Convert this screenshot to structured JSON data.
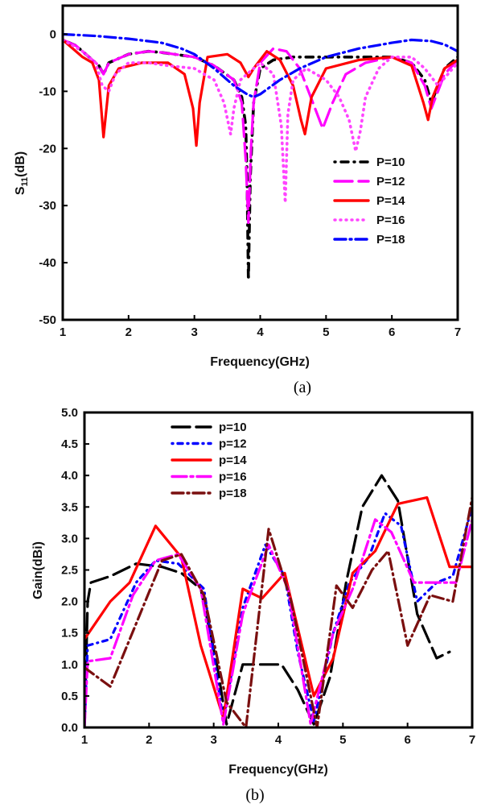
{
  "chart_data": [
    {
      "type": "line",
      "panel_label": "(a)",
      "title": "",
      "xlabel": "Frequency(GHz)",
      "ylabel_main": "S",
      "ylabel_sub": "11",
      "ylabel_unit": "(dB)",
      "xlim": [
        1,
        7
      ],
      "ylim": [
        -50,
        5
      ],
      "xticks": [
        1,
        2,
        3,
        4,
        5,
        6,
        7
      ],
      "yticks": [
        0,
        -10,
        -20,
        -30,
        -40,
        -50
      ],
      "grid": false,
      "legend_position": "right",
      "series": [
        {
          "name": "P=10",
          "color": "#000000",
          "dash": "dot-dash-heavy",
          "x": [
            1,
            1.2,
            1.4,
            1.55,
            1.62,
            1.7,
            2,
            2.3,
            2.5,
            3,
            3.3,
            3.6,
            3.72,
            3.78,
            3.8,
            3.82,
            3.85,
            3.9,
            4,
            4.2,
            4.5,
            5,
            5.5,
            6,
            6.3,
            6.5,
            6.6,
            6.8,
            7
          ],
          "y": [
            -1,
            -2,
            -4,
            -5.5,
            -7,
            -5,
            -3.5,
            -3,
            -3.2,
            -4,
            -5.5,
            -8,
            -11,
            -16,
            -25,
            -43,
            -25,
            -12,
            -6,
            -4.5,
            -4,
            -4,
            -4,
            -4,
            -5,
            -8,
            -12,
            -6,
            -4
          ]
        },
        {
          "name": "P=12",
          "color": "#ff00ff",
          "dash": "long-dash",
          "x": [
            1,
            1.2,
            1.4,
            1.55,
            1.62,
            1.7,
            2,
            2.3,
            2.5,
            3,
            3.3,
            3.6,
            3.72,
            3.78,
            3.82,
            3.86,
            3.9,
            4,
            4.2,
            4.4,
            4.6,
            4.8,
            4.95,
            5.1,
            5.3,
            5.6,
            6,
            6.3,
            6.5,
            6.6,
            6.8,
            7
          ],
          "y": [
            -1,
            -2,
            -4,
            -5.5,
            -7,
            -5,
            -3.5,
            -3,
            -3.2,
            -4,
            -5.5,
            -8,
            -12,
            -22,
            -33,
            -20,
            -12,
            -5,
            -2.5,
            -3,
            -6,
            -12,
            -16.5,
            -12,
            -7,
            -5,
            -4,
            -5,
            -9,
            -13,
            -7,
            -4.5
          ]
        },
        {
          "name": "P=14",
          "color": "#ff0000",
          "dash": "solid",
          "x": [
            1,
            1.3,
            1.45,
            1.55,
            1.62,
            1.7,
            1.85,
            2.2,
            2.6,
            2.85,
            2.98,
            3.03,
            3.08,
            3.2,
            3.5,
            3.7,
            3.82,
            3.9,
            4.1,
            4.3,
            4.5,
            4.62,
            4.68,
            4.78,
            5,
            5.5,
            6,
            6.3,
            6.48,
            6.55,
            6.62,
            6.8,
            7
          ],
          "y": [
            -1,
            -4,
            -5,
            -8,
            -18,
            -9,
            -6,
            -5,
            -5,
            -7,
            -13,
            -19.5,
            -12,
            -4,
            -3.5,
            -5,
            -7.5,
            -6,
            -3,
            -4.5,
            -9,
            -15,
            -17.5,
            -11,
            -6,
            -4.5,
            -4,
            -5.5,
            -12,
            -15,
            -11,
            -6,
            -4.5
          ]
        },
        {
          "name": "P=16",
          "color": "#ff44ff",
          "dash": "dot",
          "x": [
            1,
            1.3,
            1.5,
            1.6,
            1.7,
            1.8,
            2,
            2.3,
            2.6,
            3,
            3.3,
            3.45,
            3.55,
            3.6,
            3.7,
            3.8,
            4,
            4.2,
            4.32,
            4.38,
            4.42,
            4.5,
            4.7,
            5,
            5.2,
            5.35,
            5.45,
            5.52,
            5.6,
            5.8,
            6,
            6.3,
            6.5,
            6.7,
            7
          ],
          "y": [
            -1,
            -3,
            -5,
            -9,
            -10,
            -7,
            -5,
            -5,
            -5.5,
            -6,
            -8,
            -12,
            -17.5,
            -13,
            -8,
            -7,
            -5,
            -7,
            -16,
            -29.5,
            -14,
            -8,
            -6,
            -8,
            -11,
            -15,
            -20.5,
            -17,
            -11,
            -6,
            -4,
            -4,
            -6,
            -9,
            -5
          ]
        },
        {
          "name": "P=18",
          "color": "#0000ff",
          "dash": "dash-dot",
          "x": [
            1,
            1.5,
            2,
            2.5,
            2.8,
            3,
            3.3,
            3.6,
            3.8,
            3.9,
            4,
            4.3,
            4.6,
            5,
            5.5,
            6,
            6.3,
            6.6,
            6.8,
            7
          ],
          "y": [
            0,
            -0.3,
            -0.8,
            -1.5,
            -2.5,
            -3.5,
            -6,
            -9,
            -10.5,
            -11,
            -10.5,
            -8,
            -6,
            -4,
            -2.5,
            -1.5,
            -1,
            -1.2,
            -1.8,
            -3
          ]
        }
      ]
    },
    {
      "type": "line",
      "panel_label": "(b)",
      "title": "",
      "xlabel": "Frequency(GHz)",
      "ylabel": "Gain(dBi)",
      "xlim": [
        1,
        7
      ],
      "ylim": [
        0,
        5
      ],
      "xticks": [
        1,
        2,
        3,
        4,
        5,
        6,
        7
      ],
      "yticks": [
        "0.0",
        "0.5",
        "1.0",
        "1.5",
        "2.0",
        "2.5",
        "3.0",
        "3.5",
        "4.0",
        "4.5",
        "5.0"
      ],
      "grid": false,
      "legend_position": "top-left",
      "series": [
        {
          "name": "p=10",
          "color": "#000000",
          "dash": "long-dash",
          "x": [
            1,
            1.05,
            1.1,
            1.4,
            1.8,
            2.2,
            2.5,
            2.8,
            3.05,
            3.2,
            3.45,
            3.8,
            4.05,
            4.3,
            4.55,
            4.8,
            5.05,
            5.3,
            5.6,
            5.85,
            6.15,
            6.45,
            6.65
          ],
          "y": [
            0.0,
            2.0,
            2.3,
            2.4,
            2.6,
            2.55,
            2.45,
            2.2,
            1.0,
            0.05,
            1.0,
            1.0,
            1.0,
            0.6,
            0.05,
            0.8,
            2.3,
            3.5,
            4.0,
            3.6,
            1.8,
            1.1,
            1.2
          ]
        },
        {
          "name": "p=12",
          "color": "#0000ff",
          "dash": "dot-dash",
          "x": [
            1,
            1.05,
            1.4,
            1.8,
            2.1,
            2.45,
            2.85,
            3.15,
            3.45,
            3.8,
            4.1,
            4.3,
            4.55,
            4.85,
            5.1,
            5.4,
            5.65,
            5.9,
            6.15,
            6.45,
            6.7,
            7
          ],
          "y": [
            0.0,
            1.3,
            1.4,
            2.3,
            2.65,
            2.6,
            2.2,
            0.1,
            1.9,
            2.9,
            2.4,
            1.2,
            0.1,
            1.5,
            2.3,
            2.7,
            3.4,
            3.2,
            2.0,
            2.3,
            2.4,
            3.5
          ]
        },
        {
          "name": "p=14",
          "color": "#ff0000",
          "dash": "solid",
          "x": [
            1,
            1.4,
            1.7,
            2.1,
            2.5,
            2.8,
            3.15,
            3.45,
            3.75,
            4.1,
            4.55,
            4.85,
            5.15,
            5.5,
            5.85,
            6.3,
            6.65,
            7
          ],
          "y": [
            1.4,
            2.0,
            2.3,
            3.2,
            2.7,
            1.3,
            0.15,
            2.2,
            2.05,
            2.45,
            0.5,
            1.1,
            2.45,
            2.8,
            3.55,
            3.65,
            2.55,
            2.55
          ]
        },
        {
          "name": "p=16",
          "color": "#ff00ff",
          "dash": "long-dash-dot",
          "x": [
            1,
            1.05,
            1.4,
            1.75,
            2.1,
            2.45,
            2.8,
            3.15,
            3.45,
            3.85,
            4.15,
            4.5,
            4.85,
            5.15,
            5.5,
            5.75,
            6.1,
            6.45,
            6.75,
            7
          ],
          "y": [
            0.0,
            1.05,
            1.1,
            2.1,
            2.65,
            2.75,
            2.2,
            0.05,
            1.8,
            2.9,
            2.2,
            0.05,
            1.5,
            2.2,
            3.3,
            3.1,
            2.3,
            2.3,
            2.3,
            3.3
          ]
        },
        {
          "name": "p=18",
          "color": "#7a0f0f",
          "dash": "dash-dot",
          "x": [
            1,
            1.4,
            1.8,
            2.2,
            2.5,
            2.85,
            3.2,
            3.5,
            3.85,
            4.2,
            4.6,
            4.9,
            5.15,
            5.45,
            5.7,
            6.0,
            6.35,
            6.7,
            7
          ],
          "y": [
            0.95,
            0.65,
            1.65,
            2.65,
            2.75,
            2.1,
            0.4,
            0.0,
            3.15,
            2.0,
            0.0,
            2.25,
            1.9,
            2.5,
            2.8,
            1.3,
            2.1,
            2.0,
            3.65
          ]
        }
      ]
    }
  ]
}
